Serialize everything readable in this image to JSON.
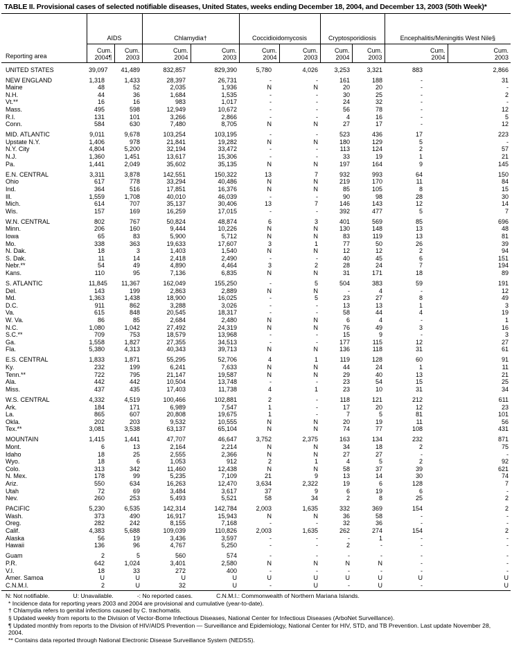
{
  "title": "TABLE II. Provisional cases of selected notifiable diseases, United States, weeks ending December 18, 2004, and December 13, 2003 (50th Week)*",
  "header": {
    "area": "Reporting area",
    "groups": [
      "AIDS",
      "Chlamydia†",
      "Coccidioidomycosis",
      "Cryptosporidiosis",
      "Encephalitis/Meningitis West Nile§"
    ],
    "subcols": [
      "Cum. 2004¶",
      "Cum. 2003",
      "Cum. 2004",
      "Cum. 2003",
      "Cum. 2004",
      "Cum. 2003",
      "Cum. 2004",
      "Cum. 2003",
      "Cum. 2004",
      "Cum. 2003"
    ]
  },
  "groups": [
    [
      [
        "UNITED STATES",
        "39,097",
        "41,489",
        "832,857",
        "829,390",
        "5,780",
        "4,026",
        "3,253",
        "3,321",
        "883",
        "2,866"
      ]
    ],
    [
      [
        "NEW ENGLAND",
        "1,318",
        "1,433",
        "28,397",
        "26,731",
        "-",
        "-",
        "161",
        "188",
        "-",
        "31"
      ],
      [
        "Maine",
        "48",
        "52",
        "2,035",
        "1,936",
        "N",
        "N",
        "20",
        "20",
        "-",
        "-"
      ],
      [
        "N.H.",
        "44",
        "36",
        "1,684",
        "1,535",
        "-",
        "-",
        "30",
        "25",
        "-",
        "2"
      ],
      [
        "Vt.**",
        "16",
        "16",
        "983",
        "1,017",
        "-",
        "-",
        "24",
        "32",
        "-",
        "-"
      ],
      [
        "Mass.",
        "495",
        "598",
        "12,949",
        "10,672",
        "-",
        "-",
        "56",
        "78",
        "-",
        "12"
      ],
      [
        "R.I.",
        "131",
        "101",
        "3,266",
        "2,866",
        "-",
        "-",
        "4",
        "16",
        "-",
        "5"
      ],
      [
        "Conn.",
        "584",
        "630",
        "7,480",
        "8,705",
        "N",
        "N",
        "27",
        "17",
        "-",
        "12"
      ]
    ],
    [
      [
        "MID. ATLANTIC",
        "9,011",
        "9,678",
        "103,254",
        "103,195",
        "-",
        "-",
        "523",
        "436",
        "17",
        "223"
      ],
      [
        "Upstate N.Y.",
        "1,406",
        "978",
        "21,841",
        "19,282",
        "N",
        "N",
        "180",
        "129",
        "5",
        "-"
      ],
      [
        "N.Y. City",
        "4,804",
        "5,200",
        "32,194",
        "33,472",
        "-",
        "-",
        "113",
        "124",
        "2",
        "57"
      ],
      [
        "N.J.",
        "1,360",
        "1,451",
        "13,617",
        "15,306",
        "-",
        "-",
        "33",
        "19",
        "1",
        "21"
      ],
      [
        "Pa.",
        "1,441",
        "2,049",
        "35,602",
        "35,135",
        "N",
        "N",
        "197",
        "164",
        "9",
        "145"
      ]
    ],
    [
      [
        "E.N. CENTRAL",
        "3,311",
        "3,878",
        "142,551",
        "150,322",
        "13",
        "7",
        "932",
        "993",
        "64",
        "150"
      ],
      [
        "Ohio",
        "617",
        "778",
        "33,294",
        "40,486",
        "N",
        "N",
        "219",
        "170",
        "11",
        "84"
      ],
      [
        "Ind.",
        "364",
        "516",
        "17,851",
        "16,376",
        "N",
        "N",
        "85",
        "105",
        "8",
        "15"
      ],
      [
        "Ill.",
        "1,559",
        "1,708",
        "40,010",
        "46,039",
        "-",
        "-",
        "90",
        "98",
        "28",
        "30"
      ],
      [
        "Mich.",
        "614",
        "707",
        "35,137",
        "30,406",
        "13",
        "7",
        "146",
        "143",
        "12",
        "14"
      ],
      [
        "Wis.",
        "157",
        "169",
        "16,259",
        "17,015",
        "-",
        "-",
        "392",
        "477",
        "5",
        "7"
      ]
    ],
    [
      [
        "W.N. CENTRAL",
        "802",
        "767",
        "50,824",
        "48,874",
        "6",
        "3",
        "401",
        "569",
        "85",
        "696"
      ],
      [
        "Minn.",
        "206",
        "160",
        "9,444",
        "10,226",
        "N",
        "N",
        "130",
        "148",
        "13",
        "48"
      ],
      [
        "Iowa",
        "65",
        "83",
        "5,900",
        "5,712",
        "N",
        "N",
        "83",
        "119",
        "13",
        "81"
      ],
      [
        "Mo.",
        "338",
        "363",
        "19,633",
        "17,607",
        "3",
        "1",
        "77",
        "50",
        "26",
        "39"
      ],
      [
        "N. Dak.",
        "18",
        "3",
        "1,403",
        "1,540",
        "N",
        "N",
        "12",
        "12",
        "2",
        "94"
      ],
      [
        "S. Dak.",
        "11",
        "14",
        "2,418",
        "2,490",
        "-",
        "-",
        "40",
        "45",
        "6",
        "151"
      ],
      [
        "Nebr.**",
        "54",
        "49",
        "4,890",
        "4,464",
        "3",
        "2",
        "28",
        "24",
        "7",
        "194"
      ],
      [
        "Kans.",
        "110",
        "95",
        "7,136",
        "6,835",
        "N",
        "N",
        "31",
        "171",
        "18",
        "89"
      ]
    ],
    [
      [
        "S. ATLANTIC",
        "11,845",
        "11,367",
        "162,049",
        "155,250",
        "-",
        "5",
        "504",
        "383",
        "59",
        "191"
      ],
      [
        "Del.",
        "143",
        "199",
        "2,863",
        "2,889",
        "N",
        "N",
        "-",
        "4",
        "-",
        "12"
      ],
      [
        "Md.",
        "1,363",
        "1,438",
        "18,900",
        "16,025",
        "-",
        "5",
        "23",
        "27",
        "8",
        "49"
      ],
      [
        "D.C.",
        "911",
        "862",
        "3,288",
        "3,026",
        "-",
        "-",
        "13",
        "13",
        "1",
        "3"
      ],
      [
        "Va.",
        "615",
        "848",
        "20,545",
        "18,317",
        "-",
        "-",
        "58",
        "44",
        "4",
        "19"
      ],
      [
        "W. Va.",
        "86",
        "85",
        "2,684",
        "2,480",
        "N",
        "N",
        "6",
        "4",
        "-",
        "1"
      ],
      [
        "N.C.",
        "1,080",
        "1,042",
        "27,492",
        "24,319",
        "N",
        "N",
        "76",
        "49",
        "3",
        "16"
      ],
      [
        "S.C.**",
        "709",
        "753",
        "18,579",
        "13,968",
        "-",
        "-",
        "15",
        "9",
        "-",
        "3"
      ],
      [
        "Ga.",
        "1,558",
        "1,827",
        "27,355",
        "34,513",
        "-",
        "-",
        "177",
        "115",
        "12",
        "27"
      ],
      [
        "Fla.",
        "5,380",
        "4,313",
        "40,343",
        "39,713",
        "N",
        "N",
        "136",
        "118",
        "31",
        "61"
      ]
    ],
    [
      [
        "E.S. CENTRAL",
        "1,833",
        "1,871",
        "55,295",
        "52,706",
        "4",
        "1",
        "119",
        "128",
        "60",
        "91"
      ],
      [
        "Ky.",
        "232",
        "199",
        "6,241",
        "7,633",
        "N",
        "N",
        "44",
        "24",
        "1",
        "11"
      ],
      [
        "Tenn.**",
        "722",
        "795",
        "21,147",
        "19,587",
        "N",
        "N",
        "29",
        "40",
        "13",
        "21"
      ],
      [
        "Ala.",
        "442",
        "442",
        "10,504",
        "13,748",
        "-",
        "-",
        "23",
        "54",
        "15",
        "25"
      ],
      [
        "Miss.",
        "437",
        "435",
        "17,403",
        "11,738",
        "4",
        "1",
        "23",
        "10",
        "31",
        "34"
      ]
    ],
    [
      [
        "W.S. CENTRAL",
        "4,332",
        "4,519",
        "100,466",
        "102,881",
        "2",
        "-",
        "118",
        "121",
        "212",
        "611"
      ],
      [
        "Ark.",
        "184",
        "171",
        "6,989",
        "7,547",
        "1",
        "-",
        "17",
        "20",
        "12",
        "23"
      ],
      [
        "La.",
        "865",
        "607",
        "20,808",
        "19,675",
        "1",
        "-",
        "7",
        "5",
        "81",
        "101"
      ],
      [
        "Okla.",
        "202",
        "203",
        "9,532",
        "10,555",
        "N",
        "N",
        "20",
        "19",
        "11",
        "56"
      ],
      [
        "Tex.**",
        "3,081",
        "3,538",
        "63,137",
        "65,104",
        "N",
        "N",
        "74",
        "77",
        "108",
        "431"
      ]
    ],
    [
      [
        "MOUNTAIN",
        "1,415",
        "1,441",
        "47,707",
        "46,647",
        "3,752",
        "2,375",
        "163",
        "134",
        "232",
        "871"
      ],
      [
        "Mont.",
        "6",
        "13",
        "2,164",
        "2,214",
        "N",
        "N",
        "34",
        "18",
        "2",
        "75"
      ],
      [
        "Idaho",
        "18",
        "25",
        "2,555",
        "2,366",
        "N",
        "N",
        "27",
        "27",
        "-",
        "-"
      ],
      [
        "Wyo.",
        "18",
        "6",
        "1,053",
        "912",
        "2",
        "1",
        "4",
        "5",
        "2",
        "92"
      ],
      [
        "Colo.",
        "313",
        "342",
        "11,460",
        "12,438",
        "N",
        "N",
        "58",
        "37",
        "39",
        "621"
      ],
      [
        "N. Mex.",
        "178",
        "99",
        "5,235",
        "7,109",
        "21",
        "9",
        "13",
        "14",
        "30",
        "74"
      ],
      [
        "Ariz.",
        "550",
        "634",
        "16,263",
        "12,470",
        "3,634",
        "2,322",
        "19",
        "6",
        "128",
        "7"
      ],
      [
        "Utah",
        "72",
        "69",
        "3,484",
        "3,617",
        "37",
        "9",
        "6",
        "19",
        "6",
        "-"
      ],
      [
        "Nev.",
        "260",
        "253",
        "5,493",
        "5,521",
        "58",
        "34",
        "2",
        "8",
        "25",
        "2"
      ]
    ],
    [
      [
        "PACIFIC",
        "5,230",
        "6,535",
        "142,314",
        "142,784",
        "2,003",
        "1,635",
        "332",
        "369",
        "154",
        "2"
      ],
      [
        "Wash.",
        "373",
        "490",
        "16,917",
        "15,943",
        "N",
        "N",
        "36",
        "58",
        "-",
        "-"
      ],
      [
        "Oreg.",
        "282",
        "242",
        "8,155",
        "7,168",
        "-",
        "-",
        "32",
        "36",
        "-",
        "-"
      ],
      [
        "Calif.",
        "4,383",
        "5,688",
        "109,039",
        "110,826",
        "2,003",
        "1,635",
        "262",
        "274",
        "154",
        "2"
      ],
      [
        "Alaska",
        "56",
        "19",
        "3,436",
        "3,597",
        "-",
        "-",
        "-",
        "1",
        "-",
        "-"
      ],
      [
        "Hawaii",
        "136",
        "96",
        "4,767",
        "5,250",
        "-",
        "-",
        "2",
        "-",
        "-",
        "-"
      ]
    ],
    [
      [
        "Guam",
        "2",
        "5",
        "560",
        "574",
        "-",
        "-",
        "-",
        "-",
        "-",
        "-"
      ],
      [
        "P.R.",
        "642",
        "1,024",
        "3,401",
        "2,580",
        "N",
        "N",
        "N",
        "N",
        "-",
        "-"
      ],
      [
        "V.I.",
        "18",
        "33",
        "272",
        "400",
        "-",
        "-",
        "-",
        "-",
        "-",
        "-"
      ],
      [
        "Amer. Samoa",
        "U",
        "U",
        "U",
        "U",
        "U",
        "U",
        "U",
        "U",
        "U",
        "U"
      ],
      [
        "C.N.M.I.",
        "2",
        "U",
        "32",
        "U",
        "-",
        "U",
        "-",
        "U",
        "-",
        "U"
      ]
    ]
  ],
  "footnotes": {
    "legend": [
      "N: Not notifiable.",
      "U: Unavailable.",
      "-: No reported cases.",
      "C.N.M.I.: Commonwealth of Northern Mariana Islands."
    ],
    "notes": [
      "* Incidence data for reporting years 2003 and 2004 are provisional and cumulative (year-to-date).",
      "† Chlamydia refers to genital infections caused by C. trachomatis.",
      "§ Updated weekly from reports to the Division of Vector-Borne Infectious Diseases, National Center for Infectious Diseases (ArboNet Surveillance).",
      "¶ Updated monthly from reports to the Division of HIV/AIDS Prevention — Surveillance and Epidemiology, National Center for HIV, STD, and TB Prevention. Last update November 28, 2004.",
      "** Contains data reported through National Electronic Disease Surveillance System (NEDSS)."
    ]
  }
}
